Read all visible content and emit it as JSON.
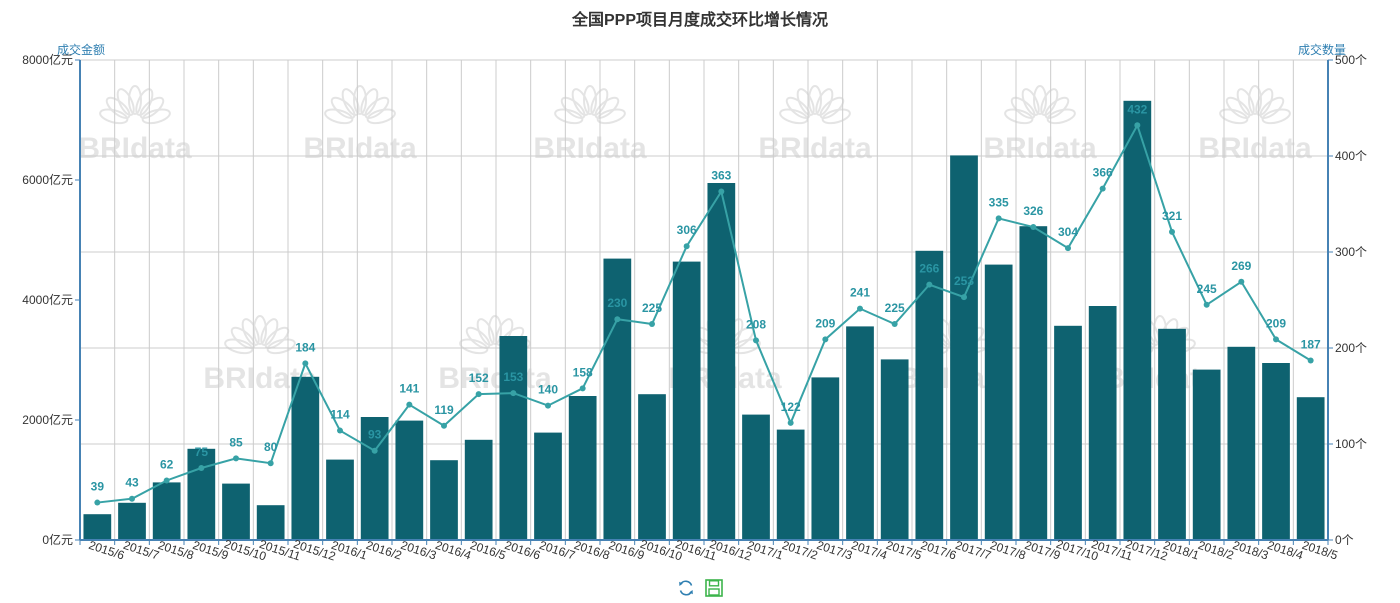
{
  "colors": {
    "bar": "#0e6270",
    "line": "#37a2a6",
    "label": "#2a95a3",
    "axis": "#4682b4",
    "grid": "#cccccc"
  },
  "toolbox": {
    "refresh_icon": "refresh-icon",
    "save_icon": "save-image-icon"
  },
  "chart_data": {
    "type": "bar",
    "title": "全国PPP项目月度成交环比增长情况",
    "watermark": "BRIdata",
    "categories": [
      "2015/6",
      "2015/7",
      "2015/8",
      "2015/9",
      "2015/10",
      "2015/11",
      "2015/12",
      "2016/1",
      "2016/2",
      "2016/3",
      "2016/4",
      "2016/5",
      "2016/6",
      "2016/7",
      "2016/8",
      "2016/9",
      "2016/10",
      "2016/11",
      "2016/12",
      "2017/1",
      "2017/2",
      "2017/3",
      "2017/4",
      "2017/5",
      "2017/6",
      "2017/7",
      "2017/8",
      "2017/9",
      "2017/10",
      "2017/11",
      "2017/12",
      "2018/1",
      "2018/2",
      "2018/3",
      "2018/4",
      "2018/5"
    ],
    "y_left": {
      "name": "成交金额",
      "unit": "亿元",
      "min": 0,
      "max": 8000,
      "ticks": [
        0,
        2000,
        4000,
        6000,
        8000
      ]
    },
    "y_right": {
      "name": "成交数量",
      "unit": "个",
      "min": 0,
      "max": 500,
      "ticks": [
        0,
        100,
        200,
        300,
        400,
        500
      ]
    },
    "series": [
      {
        "type": "bar",
        "axis": "left",
        "values": [
          430,
          620,
          960,
          1520,
          940,
          580,
          2720,
          1340,
          2050,
          1990,
          1330,
          1670,
          3400,
          1790,
          2400,
          4690,
          2430,
          4640,
          5950,
          2090,
          1840,
          2710,
          3560,
          3010,
          4820,
          6410,
          4590,
          5230,
          3570,
          3900,
          7320,
          3520,
          2840,
          3220,
          2950,
          2380
        ]
      },
      {
        "type": "line",
        "axis": "right",
        "values": [
          39,
          43,
          62,
          75,
          85,
          80,
          184,
          114,
          93,
          141,
          119,
          152,
          153,
          140,
          158,
          230,
          225,
          306,
          363,
          208,
          122,
          209,
          241,
          225,
          266,
          253,
          335,
          326,
          304,
          366,
          432,
          321,
          245,
          269,
          209,
          187
        ]
      }
    ],
    "grid": true
  }
}
